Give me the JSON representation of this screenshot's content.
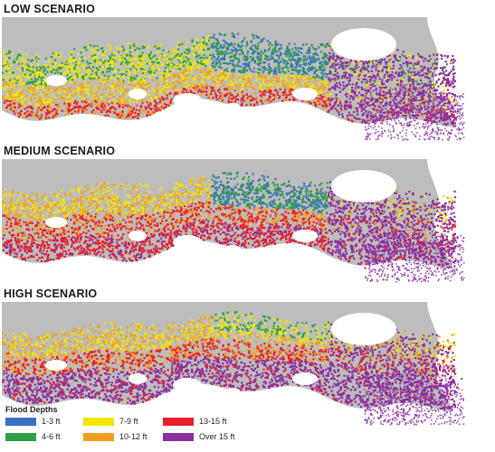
{
  "panels": [
    {
      "title": "LOW SCENARIO"
    },
    {
      "title": "MEDIUM SCENARIO"
    },
    {
      "title": "HIGH SCENARIO"
    }
  ],
  "legend": {
    "title": "Flood Depths",
    "items": [
      {
        "label": "1-3 ft",
        "color": "#3a6fc4"
      },
      {
        "label": "4-6 ft",
        "color": "#2ea043"
      },
      {
        "label": "7-9 ft",
        "color": "#f2e600"
      },
      {
        "label": "10-12 ft",
        "color": "#f0a020"
      },
      {
        "label": "13-15 ft",
        "color": "#e8202a"
      },
      {
        "label": "Over 15 ft",
        "color": "#8a2fa0"
      }
    ]
  },
  "colors": {
    "land": "#bdbdbd",
    "water": "#ffffff",
    "lake": "#ffffff"
  }
}
